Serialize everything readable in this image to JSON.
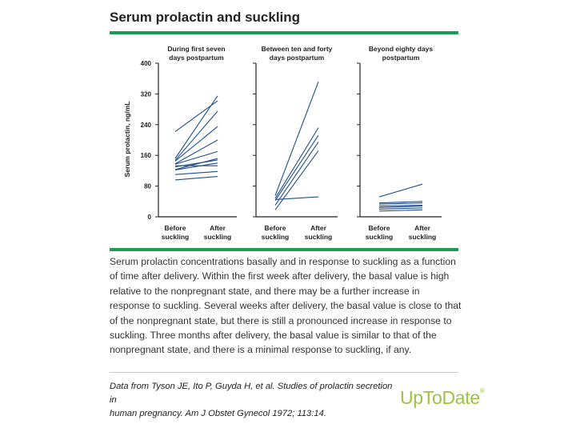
{
  "figure": {
    "title": "Serum prolactin and suckling",
    "caption": "Serum prolactin concentrations basally and in response to suckling as a function of time after delivery. Within the first week after delivery, the basal value is high relative to the nonpregnant state, and there may be a further increase in response to suckling. Several weeks after delivery, the basal value is close to that of the nonpregnant state, but there is still a pronounced increase in response to suckling. Three months after delivery, the basal value is similar to that of the nonpregnant state, and there is a minimal response to suckling, if any.",
    "source_line1": "Data from Tyson JE, Ito P, Guyda H, et al. Studies of prolactin secretion in",
    "source_line2": "human pregnancy. Am J Obstet Gynecol 1972; 113:14.",
    "logo_text": "UpToDate",
    "logo_mark": "®"
  },
  "colors": {
    "accent": "#1d9b54",
    "line": "#1f4e8c",
    "logo": "#9bc43c"
  },
  "chart_data": {
    "type": "line",
    "ylabel": "Serum prolactin, ng/mL",
    "ylim": [
      0,
      400
    ],
    "yticks": [
      0,
      80,
      160,
      240,
      320,
      400
    ],
    "categories": [
      "Before suckling",
      "After suckling"
    ],
    "category_lines": [
      [
        "Before",
        "suckling"
      ],
      [
        "After",
        "suckling"
      ]
    ],
    "panels": [
      {
        "title_lines": [
          "During first seven",
          "days postpartum"
        ],
        "pairs": [
          [
            222,
            302
          ],
          [
            152,
            315
          ],
          [
            147,
            275
          ],
          [
            145,
            235
          ],
          [
            138,
            200
          ],
          [
            137,
            170
          ],
          [
            130,
            148
          ],
          [
            133,
            133
          ],
          [
            122,
            140
          ],
          [
            123,
            152
          ],
          [
            110,
            118
          ],
          [
            96,
            105
          ]
        ]
      },
      {
        "title_lines": [
          "Between ten and forty",
          "days postpartum"
        ],
        "pairs": [
          [
            55,
            352
          ],
          [
            48,
            232
          ],
          [
            42,
            212
          ],
          [
            30,
            195
          ],
          [
            18,
            172
          ],
          [
            45,
            52
          ]
        ]
      },
      {
        "title_lines": [
          "Beyond eighty days",
          "postpartum"
        ],
        "pairs": [
          [
            52,
            85
          ],
          [
            36,
            40
          ],
          [
            33,
            36
          ],
          [
            28,
            30
          ],
          [
            24,
            28
          ],
          [
            20,
            23
          ],
          [
            15,
            18
          ]
        ]
      }
    ]
  }
}
